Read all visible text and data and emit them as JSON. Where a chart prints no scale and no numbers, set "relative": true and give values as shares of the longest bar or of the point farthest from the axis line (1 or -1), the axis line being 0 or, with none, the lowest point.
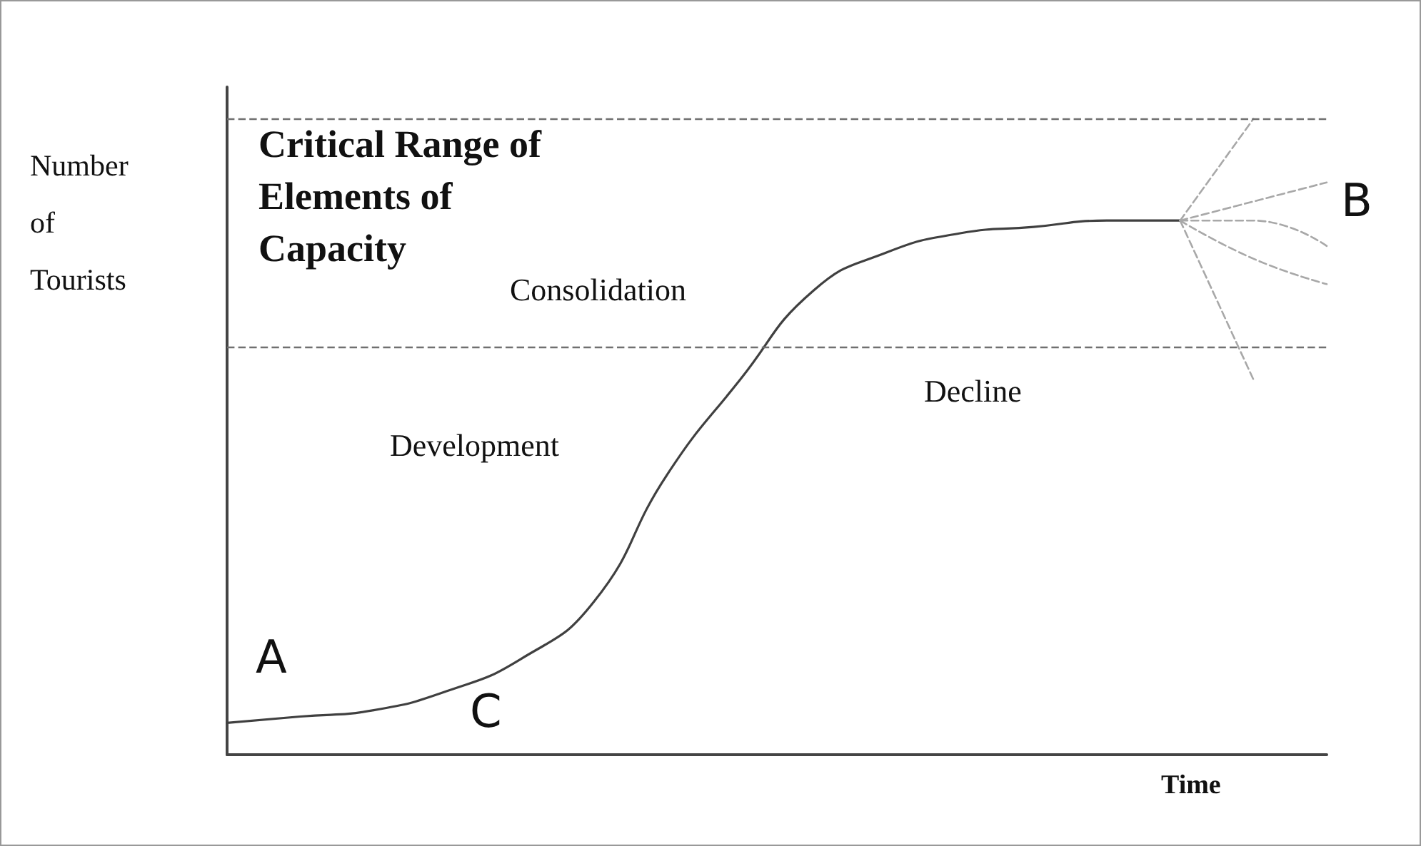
{
  "chart_data": {
    "type": "line",
    "relative": true,
    "xlabel": "Time",
    "ylabel": "Number of Tourists",
    "categories": [
      null,
      null,
      null,
      null,
      null,
      null,
      null,
      null,
      null,
      null,
      null,
      null,
      null,
      null,
      null,
      null
    ],
    "series": [
      {
        "color": "#404040",
        "line_style": "solid",
        "values": [
          0.05,
          0.06,
          0.07,
          0.1,
          0.15,
          0.24,
          0.44,
          0.59,
          0.73,
          0.79,
          0.82,
          0.83,
          0.84,
          0.84,
          null,
          null
        ]
      },
      {
        "color": "#a8a8a8",
        "line_style": "dashed",
        "values": [
          null,
          null,
          null,
          null,
          null,
          null,
          null,
          null,
          null,
          null,
          null,
          null,
          null,
          0.84,
          1.0,
          null
        ]
      },
      {
        "color": "#a8a8a8",
        "line_style": "dashed",
        "values": [
          null,
          null,
          null,
          null,
          null,
          null,
          null,
          null,
          null,
          null,
          null,
          null,
          null,
          0.84,
          0.87,
          0.9
        ]
      },
      {
        "color": "#a8a8a8",
        "line_style": "dashed",
        "values": [
          null,
          null,
          null,
          null,
          null,
          null,
          null,
          null,
          null,
          null,
          null,
          null,
          null,
          0.84,
          0.84,
          0.8
        ]
      },
      {
        "color": "#a8a8a8",
        "line_style": "dashed",
        "values": [
          null,
          null,
          null,
          null,
          null,
          null,
          null,
          null,
          null,
          null,
          null,
          null,
          null,
          0.84,
          0.78,
          0.74
        ]
      },
      {
        "color": "#a8a8a8",
        "line_style": "dashed",
        "values": [
          null,
          null,
          null,
          null,
          null,
          null,
          null,
          null,
          null,
          null,
          null,
          null,
          null,
          0.84,
          0.59,
          null
        ]
      }
    ],
    "ref_lines": [
      {
        "axis": "y",
        "value": 1.0,
        "line_style": "dashed",
        "color": "#707070"
      },
      {
        "axis": "y",
        "value": 0.64,
        "line_style": "dashed",
        "color": "#707070"
      }
    ],
    "annotations": [
      "Critical Range of Elements of Capacity",
      "Consolidation",
      "Development",
      "Decline",
      "A",
      "B",
      "C"
    ],
    "marker": "none",
    "grid": false
  }
}
